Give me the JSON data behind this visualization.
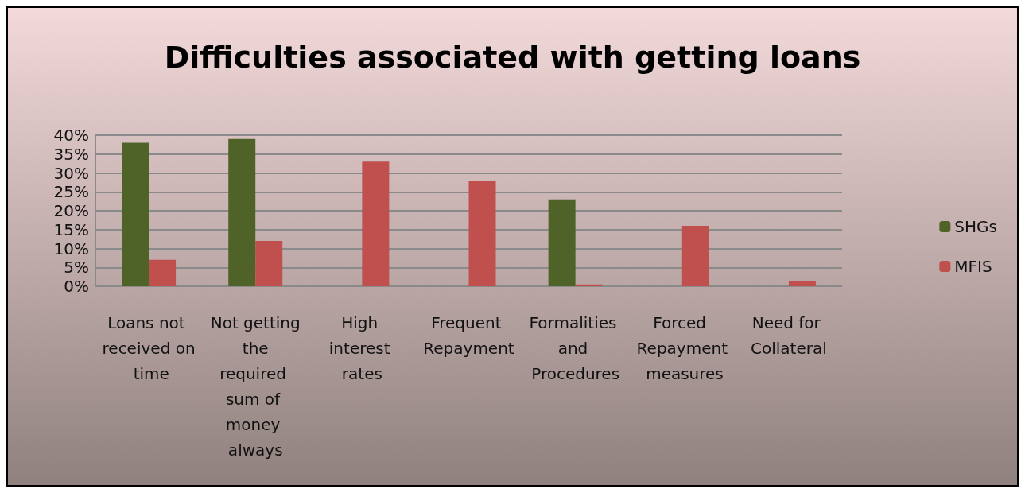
{
  "chart_data": {
    "type": "bar",
    "title": "Difficulties associated with getting loans",
    "categories": [
      "Loans not received on time",
      "Not getting the required sum of money always",
      "High interest rates",
      "Frequent Repayment",
      "Formalities and Procedures",
      "Forced Repayment measures",
      "Need for Collateral"
    ],
    "series": [
      {
        "name": "SHGs",
        "color": "#4f6228",
        "values": [
          38,
          39,
          0,
          0,
          23,
          0,
          0
        ]
      },
      {
        "name": "MFIS",
        "color": "#c0504d",
        "values": [
          7,
          12,
          33,
          28,
          0.5,
          16,
          1.5
        ]
      }
    ],
    "ylim": [
      0,
      40
    ],
    "yticks": [
      {
        "value": 0,
        "label": "0%"
      },
      {
        "value": 5,
        "label": "5%"
      },
      {
        "value": 10,
        "label": "10%"
      },
      {
        "value": 15,
        "label": "15%"
      },
      {
        "value": 20,
        "label": "20%"
      },
      {
        "value": 25,
        "label": "25%"
      },
      {
        "value": 30,
        "label": "30%"
      },
      {
        "value": 35,
        "label": "35%"
      },
      {
        "value": 40,
        "label": "40%"
      }
    ],
    "grid": "y",
    "legend": "right"
  }
}
